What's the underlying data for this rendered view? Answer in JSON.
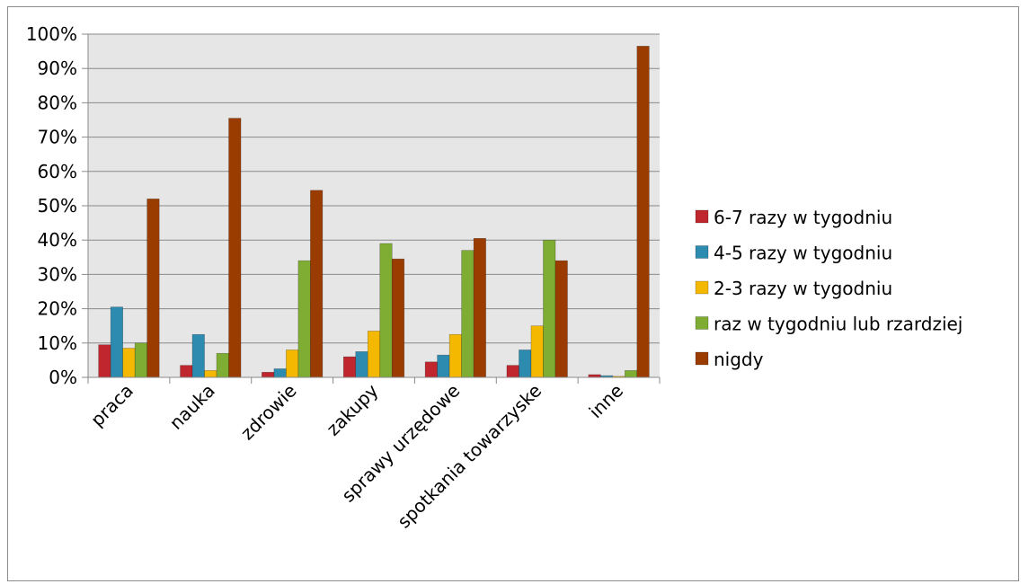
{
  "chart_data": {
    "type": "bar",
    "categories": [
      "praca",
      "nauka",
      "zdrowie",
      "zakupy",
      "sprawy urzędowe",
      "spotkania towarzyske",
      "inne"
    ],
    "series": [
      {
        "name": "6-7 razy w tygodniu",
        "color": "#c0262d",
        "values": [
          9.5,
          3.5,
          1.5,
          6,
          4.5,
          3.5,
          0.8
        ]
      },
      {
        "name": "4-5 razy w tygodniu",
        "color": "#2e8bb0",
        "values": [
          20.5,
          12.5,
          2.5,
          7.5,
          6.5,
          8,
          0.5
        ]
      },
      {
        "name": "2-3 razy w tygodniu",
        "color": "#f5b800",
        "values": [
          8.5,
          2,
          8,
          13.5,
          12.5,
          15,
          0.3
        ]
      },
      {
        "name": "raz w tygodniu lub rzardziej",
        "color": "#7fac32",
        "values": [
          10,
          7,
          34,
          39,
          37,
          40,
          2
        ]
      },
      {
        "name": "nigdy",
        "color": "#9a3c00",
        "values": [
          52,
          75.5,
          54.5,
          34.5,
          40.5,
          34,
          96.5
        ]
      }
    ],
    "y_ticks": [
      "0%",
      "10%",
      "20%",
      "30%",
      "40%",
      "50%",
      "60%",
      "70%",
      "80%",
      "90%",
      "100%"
    ],
    "ylim": [
      0,
      100
    ],
    "grid": true,
    "plot_background": "#e6e6e6",
    "legend_position": "right"
  }
}
